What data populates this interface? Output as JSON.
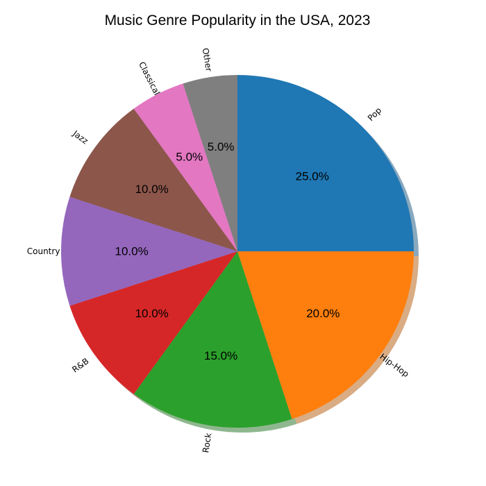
{
  "chart_data": {
    "type": "pie",
    "title": "Music Genre Popularity in the USA, 2023",
    "categories": [
      "Pop",
      "Hip-Hop",
      "Rock",
      "R&B",
      "Country",
      "Jazz",
      "Classical",
      "Other"
    ],
    "values": [
      25.0,
      20.0,
      15.0,
      10.0,
      10.0,
      10.0,
      5.0,
      5.0
    ],
    "percent_labels": [
      "25.0%",
      "20.0%",
      "15.0%",
      "10.0%",
      "10.0%",
      "10.0%",
      "5.0%",
      "5.0%"
    ],
    "colors": [
      "#1f77b4",
      "#ff7f0e",
      "#2ca02c",
      "#d62728",
      "#9467bd",
      "#8c564b",
      "#e377c2",
      "#7f7f7f"
    ],
    "start_angle": 90,
    "direction": "clockwise",
    "shadow": true,
    "legend": "none"
  }
}
